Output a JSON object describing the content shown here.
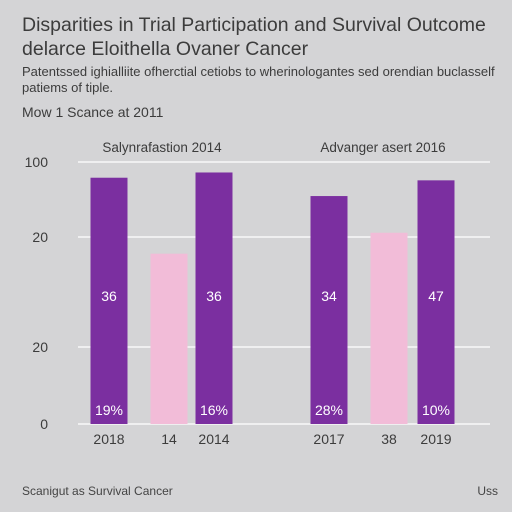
{
  "header": {
    "title": "Disparities in Trial Participation and Survival Outcome delarce Eloithella Ovaner Cancer",
    "subtitle": "Patentssed ighialliite ofherctial cetiobs to wherinologantes sed orendian buclasself patiems of tiple.",
    "note": "Mow 1 Scance at 2011"
  },
  "footer": {
    "left": "Scanigut as Survival Cancer",
    "right": "Uss"
  },
  "colors": {
    "background": "#d4d4d6",
    "purple": "#7b2fa0",
    "pink": "#f2bcd8",
    "grid": "#ffffff"
  },
  "chart_data": {
    "type": "bar",
    "title": "",
    "ylim": [
      0,
      100
    ],
    "y_tick_labels": [
      "100",
      "20",
      "20",
      "0"
    ],
    "groups": [
      {
        "label": "Salynrafastion 2014",
        "bars": [
          {
            "category": "2018",
            "value": 94,
            "color": "purple",
            "mid_label": "36",
            "bottom_label": "19%"
          },
          {
            "category": "14",
            "value": 65,
            "color": "pink",
            "mid_label": "",
            "bottom_label": ""
          },
          {
            "category": "2014",
            "value": 96,
            "color": "purple",
            "mid_label": "36",
            "bottom_label": "16%"
          }
        ]
      },
      {
        "label": "Advanger asert 2016",
        "bars": [
          {
            "category": "2017",
            "value": 87,
            "color": "purple",
            "mid_label": "34",
            "bottom_label": "28%"
          },
          {
            "category": "38",
            "value": 73,
            "color": "pink",
            "mid_label": "",
            "bottom_label": ""
          },
          {
            "category": "2019",
            "value": 93,
            "color": "purple",
            "mid_label": "47",
            "bottom_label": "10%"
          }
        ]
      }
    ]
  }
}
